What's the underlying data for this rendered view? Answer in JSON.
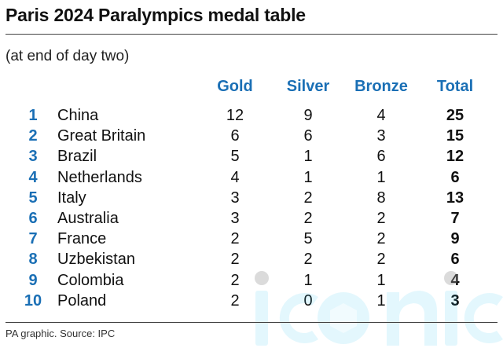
{
  "title": "Paris 2024 Paralympics medal table",
  "subtitle": "(at end of day two)",
  "source": "PA graphic. Source: IPC",
  "watermark_text": "iconic",
  "colors": {
    "accent": "#1a6fb5",
    "text": "#111111",
    "rule": "#444444",
    "watermark": "#29c4f0"
  },
  "chart_data": {
    "type": "table",
    "columns": [
      "Gold",
      "Silver",
      "Bronze",
      "Total"
    ],
    "rows": [
      {
        "rank": "1",
        "country": "China",
        "gold": "12",
        "silver": "9",
        "bronze": "4",
        "total": "25"
      },
      {
        "rank": "2",
        "country": "Great Britain",
        "gold": "6",
        "silver": "6",
        "bronze": "3",
        "total": "15"
      },
      {
        "rank": "3",
        "country": "Brazil",
        "gold": "5",
        "silver": "1",
        "bronze": "6",
        "total": "12"
      },
      {
        "rank": "4",
        "country": "Netherlands",
        "gold": "4",
        "silver": "1",
        "bronze": "1",
        "total": "6"
      },
      {
        "rank": "5",
        "country": "Italy",
        "gold": "3",
        "silver": "2",
        "bronze": "8",
        "total": "13"
      },
      {
        "rank": "6",
        "country": "Australia",
        "gold": "3",
        "silver": "2",
        "bronze": "2",
        "total": "7"
      },
      {
        "rank": "7",
        "country": "France",
        "gold": "2",
        "silver": "5",
        "bronze": "2",
        "total": "9"
      },
      {
        "rank": "8",
        "country": "Uzbekistan",
        "gold": "2",
        "silver": "2",
        "bronze": "2",
        "total": "6"
      },
      {
        "rank": "9",
        "country": "Colombia",
        "gold": "2",
        "silver": "1",
        "bronze": "1",
        "total": "4"
      },
      {
        "rank": "10",
        "country": "Poland",
        "gold": "2",
        "silver": "0",
        "bronze": "1",
        "total": "3"
      }
    ]
  }
}
